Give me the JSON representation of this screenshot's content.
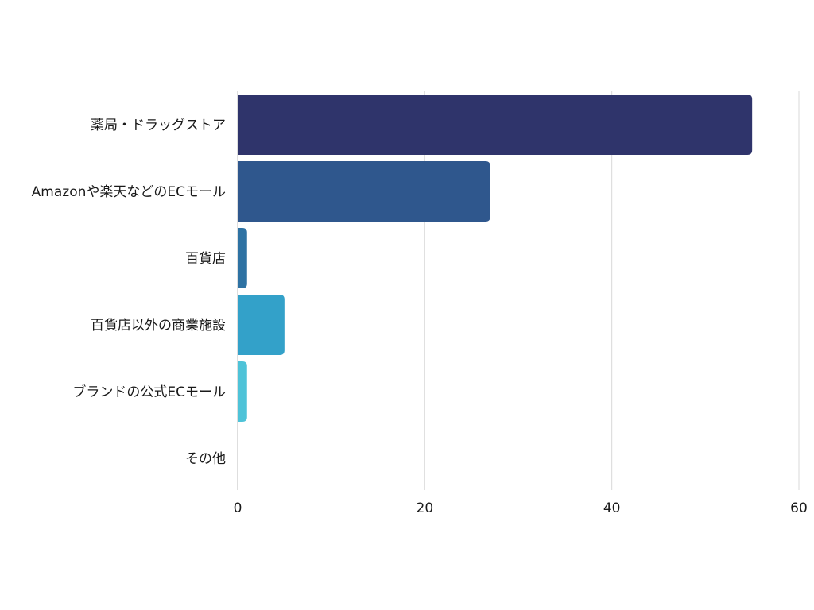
{
  "chart_data": {
    "type": "bar",
    "orientation": "horizontal",
    "title": "",
    "xlabel": "",
    "ylabel": "",
    "categories": [
      "薬局・ドラッグストア",
      "Amazonや楽天などのECモール",
      "百貨店",
      "百貨店以外の商業施設",
      "ブランドの公式ECモール",
      "その他"
    ],
    "values": [
      55,
      27,
      1,
      5,
      1,
      0
    ],
    "colors": [
      "#2f346b",
      "#2f578d",
      "#2e72a3",
      "#33a1c9",
      "#4ec3d8",
      "#6fd3e0"
    ],
    "xlim": [
      0,
      60
    ],
    "xticks": [
      0,
      20,
      40,
      60
    ],
    "grid": "vertical",
    "legend": "none"
  }
}
